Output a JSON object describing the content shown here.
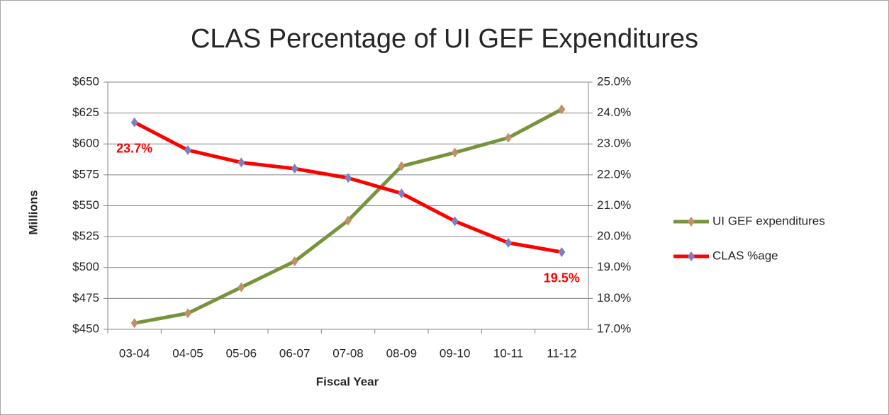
{
  "chart_data": {
    "type": "line",
    "title": "CLAS Percentage of UI GEF Expenditures",
    "xlabel": "Fiscal Year",
    "ylabel": "Millions",
    "categories": [
      "03-04",
      "04-05",
      "05-06",
      "06-07",
      "07-08",
      "08-09",
      "09-10",
      "10-11",
      "11-12"
    ],
    "series": [
      {
        "name": "UI GEF expenditures",
        "color": "#77933c",
        "marker_color": "#c0906a",
        "values": [
          455,
          463,
          484,
          505,
          538,
          582,
          593,
          605,
          628
        ]
      },
      {
        "name": "CLAS %age",
        "color": "#ff0000",
        "marker_color": "#7f7fbf",
        "axis": "y2",
        "values": [
          23.7,
          22.8,
          22.4,
          22.2,
          21.9,
          21.4,
          20.5,
          19.8,
          19.5
        ],
        "value_labels": [
          "23.7%",
          null,
          null,
          null,
          null,
          null,
          null,
          null,
          "19.5%"
        ]
      }
    ],
    "ylim": [
      450,
      650
    ],
    "yticks": [
      {
        "value": 450,
        "label": "$450"
      },
      {
        "value": 475,
        "label": "$475"
      },
      {
        "value": 500,
        "label": "$500"
      },
      {
        "value": 525,
        "label": "$525"
      },
      {
        "value": 550,
        "label": "$550"
      },
      {
        "value": 575,
        "label": "$575"
      },
      {
        "value": 600,
        "label": "$600"
      },
      {
        "value": 625,
        "label": "$625"
      },
      {
        "value": 650,
        "label": "$650"
      }
    ],
    "y2lim": [
      17,
      25
    ],
    "y2ticks": [
      {
        "value": 17,
        "label": "17.0%"
      },
      {
        "value": 18,
        "label": "18.0%"
      },
      {
        "value": 19,
        "label": "19.0%"
      },
      {
        "value": 20,
        "label": "20.0%"
      },
      {
        "value": 21,
        "label": "21.0%"
      },
      {
        "value": 22,
        "label": "22.0%"
      },
      {
        "value": 23,
        "label": "23.0%"
      },
      {
        "value": 24,
        "label": "24.0%"
      },
      {
        "value": 25,
        "label": "25.0%"
      }
    ],
    "grid": true,
    "legend": "right"
  }
}
